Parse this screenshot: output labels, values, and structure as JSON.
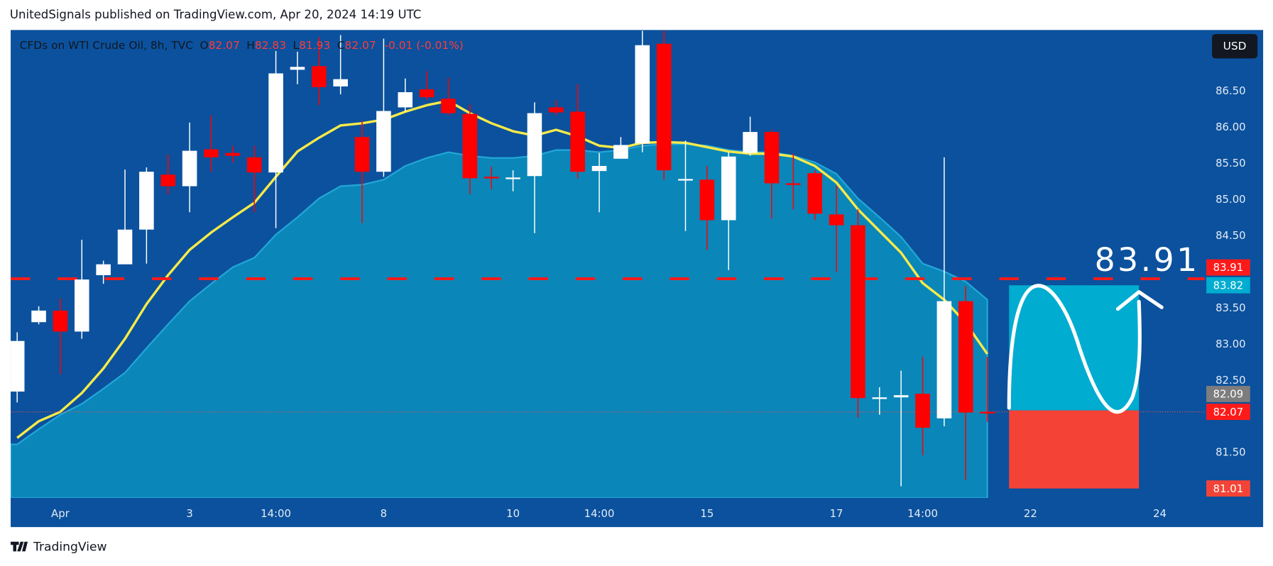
{
  "header": {
    "title": "UnitedSignals published on TradingView.com, Apr 20, 2024 14:19 UTC"
  },
  "footer": {
    "brand": "TradingView"
  },
  "currency": "USD",
  "chart_data": {
    "type": "candlestick",
    "symbol": "CFDs on WTI Crude Oil, 8h, TVC",
    "legend_labels": [
      "O",
      "H",
      "L",
      "C"
    ],
    "change": "-0.01 (-0.01%)",
    "categories": [
      null,
      null,
      "Apr",
      null,
      null,
      null,
      null,
      null,
      "3",
      null,
      null,
      null,
      "14:00",
      null,
      null,
      null,
      null,
      "8",
      null,
      null,
      null,
      null,
      null,
      "10",
      null,
      null,
      null,
      "14:00",
      null,
      null,
      null,
      null,
      "15",
      null,
      null,
      null,
      null,
      null,
      "17",
      null,
      null,
      null,
      "14:00",
      null,
      null,
      null,
      null,
      "22",
      null,
      null,
      null,
      null,
      null,
      "24"
    ],
    "open": [
      82.35,
      83.31,
      83.47,
      83.18,
      83.96,
      84.11,
      84.59,
      85.35,
      85.19,
      85.7,
      85.65,
      85.59,
      85.38,
      86.8,
      86.85,
      86.57,
      85.87,
      85.39,
      86.28,
      86.53,
      86.4,
      86.19,
      85.32,
      85.29,
      85.33,
      86.28,
      86.22,
      85.4,
      85.57,
      85.78,
      87.16,
      85.27,
      85.28,
      84.72,
      85.65,
      85.94,
      85.23,
      85.37,
      84.8,
      84.65,
      82.25,
      82.27,
      82.32,
      81.98,
      83.6,
      82.07,
      null,
      null,
      null,
      null,
      null,
      null,
      null,
      null
    ],
    "high": [
      83.17,
      83.53,
      83.64,
      84.45,
      84.16,
      85.42,
      85.45,
      85.63,
      86.07,
      86.17,
      85.75,
      85.75,
      87.06,
      87.05,
      87.25,
      87.28,
      86.09,
      87.23,
      86.68,
      86.78,
      86.69,
      86.32,
      85.46,
      85.41,
      86.35,
      86.38,
      86.6,
      85.65,
      85.87,
      87.34,
      87.34,
      85.82,
      85.47,
      85.66,
      86.15,
      85.97,
      85.64,
      85.41,
      85.2,
      84.87,
      82.41,
      82.64,
      82.83,
      85.59,
      83.81,
      82.83,
      null,
      null,
      null,
      null,
      null,
      null,
      null,
      null
    ],
    "low": [
      82.2,
      83.28,
      82.59,
      83.08,
      83.84,
      84.11,
      84.12,
      85.08,
      84.83,
      85.39,
      85.52,
      84.83,
      84.61,
      86.6,
      86.31,
      86.46,
      84.68,
      85.32,
      86.22,
      86.38,
      86.17,
      85.08,
      85.15,
      85.12,
      84.54,
      86.17,
      85.3,
      84.83,
      85.57,
      85.66,
      85.28,
      84.57,
      84.31,
      84.03,
      85.61,
      84.74,
      84.87,
      84.72,
      84.0,
      81.99,
      82.03,
      81.04,
      81.47,
      81.87,
      81.13,
      81.93,
      null,
      null,
      null,
      null,
      null,
      null,
      null,
      null
    ],
    "close": [
      83.05,
      83.47,
      83.18,
      83.9,
      84.11,
      84.59,
      85.39,
      85.19,
      85.68,
      85.59,
      85.61,
      85.38,
      86.75,
      86.84,
      86.56,
      86.67,
      85.39,
      86.23,
      86.49,
      86.42,
      86.2,
      85.3,
      85.3,
      85.31,
      86.2,
      86.21,
      85.39,
      85.47,
      85.76,
      87.14,
      85.41,
      85.29,
      84.72,
      85.6,
      85.94,
      85.23,
      85.21,
      84.81,
      84.65,
      82.26,
      82.27,
      82.3,
      81.85,
      83.6,
      82.06,
      82.07,
      null,
      null,
      null,
      null,
      null,
      null,
      null,
      null
    ],
    "up_color": "#ffffff",
    "down_color": "#ff0000",
    "lines": [
      {
        "color": "#f7ea48",
        "values": [
          81.71,
          81.94,
          82.07,
          82.33,
          82.67,
          83.08,
          83.56,
          83.96,
          84.31,
          84.55,
          84.76,
          84.96,
          85.32,
          85.67,
          85.86,
          86.03,
          86.06,
          86.11,
          86.22,
          86.31,
          86.37,
          86.2,
          86.06,
          85.95,
          85.89,
          85.97,
          85.88,
          85.75,
          85.72,
          85.79,
          85.8,
          85.79,
          85.73,
          85.67,
          85.64,
          85.64,
          85.6,
          85.47,
          85.24,
          84.87,
          84.57,
          84.27,
          83.85,
          83.62,
          83.3,
          82.87,
          null,
          null,
          null,
          null,
          null,
          null,
          null,
          null
        ]
      }
    ],
    "areas": [
      {
        "color": "#0a86b9",
        "values": [
          81.62,
          81.83,
          82.03,
          82.18,
          82.39,
          82.61,
          82.95,
          83.28,
          83.6,
          83.84,
          84.07,
          84.2,
          84.52,
          84.76,
          85.02,
          85.19,
          85.21,
          85.28,
          85.47,
          85.58,
          85.66,
          85.61,
          85.58,
          85.58,
          85.61,
          85.69,
          85.69,
          85.66,
          85.69,
          85.75,
          85.77,
          85.77,
          85.75,
          85.69,
          85.66,
          85.66,
          85.61,
          85.52,
          85.36,
          85.02,
          84.76,
          84.49,
          84.12,
          84.01,
          83.87,
          83.62,
          null,
          null,
          null,
          null,
          null,
          null,
          null,
          null
        ]
      }
    ],
    "level": {
      "value": 83.91,
      "color": "#ff1a1a"
    },
    "position": {
      "target": 83.82,
      "entry": 82.09,
      "stop": 81.01,
      "target_color": "#00acd0",
      "entry_color": "#7d7d7d",
      "stop_color": "#f44336"
    },
    "ylim": [
      80.88,
      87.35
    ],
    "yticks": [
      {
        "value": 81.5,
        "label": "81.50"
      },
      {
        "value": 82.5,
        "label": "82.50"
      },
      {
        "value": 83,
        "label": "83.00"
      },
      {
        "value": 83.5,
        "label": "83.50"
      },
      {
        "value": 84.5,
        "label": "84.50"
      },
      {
        "value": 85,
        "label": "85.00"
      },
      {
        "value": 85.5,
        "label": "85.50"
      },
      {
        "value": 86,
        "label": "86.00"
      },
      {
        "value": 86.5,
        "label": "86.50"
      }
    ],
    "grid": false
  }
}
